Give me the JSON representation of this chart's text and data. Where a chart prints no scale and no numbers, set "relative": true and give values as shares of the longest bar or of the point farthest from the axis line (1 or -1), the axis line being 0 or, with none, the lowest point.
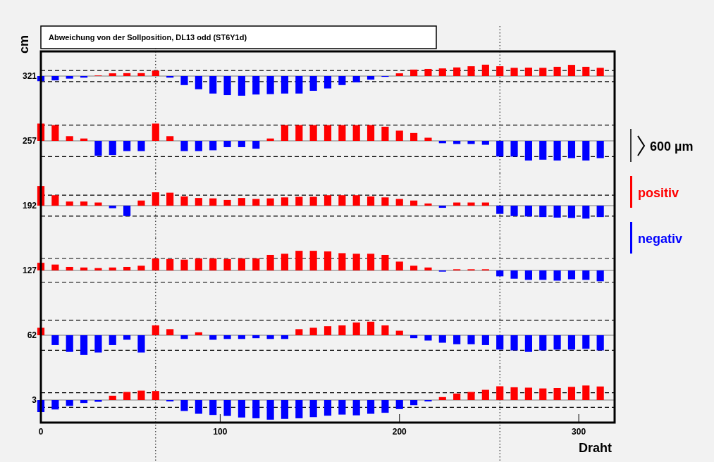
{
  "chart_data": [
    {
      "type": "bar",
      "relative": true,
      "title": "Abweichung von der Sollposition, DL13 odd (ST6Y1d)",
      "ylabel": "cm",
      "legend": "right",
      "legend_title": "600 µm",
      "xlim": [
        0,
        320
      ],
      "annotations": [
        "321"
      ],
      "x": [
        0,
        8,
        16,
        24,
        32,
        40,
        48,
        56,
        64,
        72,
        80,
        88,
        96,
        104,
        112,
        120,
        128,
        136,
        144,
        152,
        160,
        168,
        176,
        184,
        192,
        200,
        208,
        216,
        224,
        232,
        240,
        248,
        256,
        264,
        272,
        280,
        288,
        296,
        304,
        312
      ],
      "ref_lines": [
        {
          "axis": "x",
          "value": 64,
          "color": "#000000",
          "line_style": "dotted"
        },
        {
          "axis": "x",
          "value": 256,
          "color": "#000000",
          "line_style": "dotted"
        },
        {
          "axis": "y",
          "value": 0.28,
          "color": "#000000",
          "line_style": "dashed"
        },
        {
          "axis": "y",
          "value": -0.28,
          "color": "#000000",
          "line_style": "dashed"
        }
      ],
      "series": [
        {
          "name": "positiv",
          "color": "#ff0000",
          "values": [
            null,
            null,
            null,
            null,
            0.03,
            0.14,
            0.15,
            0.15,
            0.28,
            null,
            null,
            null,
            null,
            null,
            null,
            null,
            null,
            null,
            null,
            null,
            null,
            null,
            null,
            null,
            null,
            0.14,
            0.33,
            0.36,
            0.39,
            0.44,
            0.5,
            0.58,
            0.5,
            0.42,
            0.43,
            0.42,
            0.47,
            0.57,
            0.47,
            0.42
          ]
        },
        {
          "name": "negativ",
          "color": "#0000ff",
          "values": [
            -0.26,
            -0.22,
            -0.13,
            -0.08,
            null,
            null,
            null,
            null,
            null,
            -0.08,
            -0.46,
            -0.67,
            -0.89,
            -0.97,
            -1,
            -0.94,
            -0.92,
            -0.89,
            -0.89,
            -0.75,
            -0.63,
            -0.46,
            -0.32,
            -0.18,
            -0.04,
            null,
            null,
            null,
            null,
            null,
            null,
            null,
            null,
            null,
            null,
            null,
            null,
            null,
            null,
            null
          ]
        }
      ]
    },
    {
      "type": "bar",
      "relative": true,
      "xlim": [
        0,
        320
      ],
      "annotations": [
        "257"
      ],
      "x": [
        0,
        8,
        16,
        24,
        32,
        40,
        48,
        56,
        64,
        72,
        80,
        88,
        96,
        104,
        112,
        120,
        128,
        136,
        144,
        152,
        160,
        168,
        176,
        184,
        192,
        200,
        208,
        216,
        224,
        232,
        240,
        248,
        256,
        264,
        272,
        280,
        288,
        296,
        304,
        312
      ],
      "ref_lines": [
        {
          "axis": "x",
          "value": 64,
          "color": "#000000",
          "line_style": "dotted"
        },
        {
          "axis": "x",
          "value": 256,
          "color": "#000000",
          "line_style": "dotted"
        },
        {
          "axis": "y",
          "value": 0.8,
          "color": "#000000",
          "line_style": "dashed"
        },
        {
          "axis": "y",
          "value": -0.8,
          "color": "#000000",
          "line_style": "dashed"
        }
      ],
      "series": [
        {
          "color": "#ff0000",
          "values": [
            0.88,
            0.8,
            0.24,
            0.12,
            null,
            null,
            null,
            null,
            0.88,
            0.24,
            null,
            null,
            null,
            null,
            null,
            null,
            0.12,
            0.8,
            0.8,
            0.8,
            0.8,
            0.8,
            0.8,
            0.8,
            0.72,
            0.52,
            0.4,
            0.16,
            null,
            null,
            null,
            null,
            null,
            null,
            null,
            null,
            null,
            null,
            null,
            null
          ]
        },
        {
          "color": "#0000ff",
          "values": [
            null,
            null,
            null,
            null,
            -0.76,
            -0.72,
            -0.52,
            -0.52,
            null,
            null,
            -0.52,
            -0.52,
            -0.48,
            -0.32,
            -0.32,
            -0.4,
            null,
            null,
            null,
            null,
            null,
            null,
            null,
            null,
            null,
            null,
            null,
            null,
            -0.12,
            -0.16,
            -0.16,
            -0.2,
            -0.8,
            -0.8,
            -1,
            -0.96,
            -1,
            -0.88,
            -1,
            -0.88
          ]
        }
      ]
    },
    {
      "type": "bar",
      "relative": true,
      "xlim": [
        0,
        320
      ],
      "annotations": [
        "192"
      ],
      "x": [
        0,
        8,
        16,
        24,
        32,
        40,
        48,
        56,
        64,
        72,
        80,
        88,
        96,
        104,
        112,
        120,
        128,
        136,
        144,
        152,
        160,
        168,
        176,
        184,
        192,
        200,
        208,
        216,
        224,
        232,
        240,
        248,
        256,
        264,
        272,
        280,
        288,
        296,
        304,
        312
      ],
      "ref_lines": [
        {
          "axis": "x",
          "value": 64,
          "color": "#000000",
          "line_style": "dotted"
        },
        {
          "axis": "x",
          "value": 256,
          "color": "#000000",
          "line_style": "dotted"
        },
        {
          "axis": "y",
          "value": 0.53,
          "color": "#000000",
          "line_style": "dashed"
        },
        {
          "axis": "y",
          "value": -0.53,
          "color": "#000000",
          "line_style": "dashed"
        }
      ],
      "series": [
        {
          "color": "#ff0000",
          "values": [
            1,
            0.53,
            0.21,
            0.21,
            0.16,
            null,
            null,
            0.26,
            0.68,
            0.66,
            0.47,
            0.39,
            0.37,
            0.29,
            0.39,
            0.34,
            0.37,
            0.42,
            0.45,
            0.45,
            0.53,
            0.53,
            0.53,
            0.47,
            0.42,
            0.34,
            0.26,
            0.11,
            null,
            0.16,
            0.16,
            0.16,
            null,
            null,
            null,
            null,
            null,
            null,
            null,
            null
          ]
        },
        {
          "color": "#0000ff",
          "values": [
            null,
            null,
            null,
            null,
            null,
            -0.13,
            -0.53,
            null,
            null,
            null,
            null,
            null,
            null,
            null,
            null,
            null,
            null,
            null,
            null,
            null,
            null,
            null,
            null,
            null,
            null,
            null,
            null,
            null,
            -0.11,
            null,
            null,
            null,
            -0.42,
            -0.53,
            -0.55,
            -0.58,
            -0.61,
            -0.63,
            -0.66,
            -0.58
          ]
        }
      ]
    },
    {
      "type": "bar",
      "relative": true,
      "xlim": [
        0,
        320
      ],
      "annotations": [
        "127"
      ],
      "x": [
        0,
        8,
        16,
        24,
        32,
        40,
        48,
        56,
        64,
        72,
        80,
        88,
        96,
        104,
        112,
        120,
        128,
        136,
        144,
        152,
        160,
        168,
        176,
        184,
        192,
        200,
        208,
        216,
        224,
        232,
        240,
        248,
        256,
        264,
        272,
        280,
        288,
        296,
        304,
        312
      ],
      "ref_lines": [
        {
          "axis": "x",
          "value": 64,
          "color": "#000000",
          "line_style": "dotted"
        },
        {
          "axis": "x",
          "value": 256,
          "color": "#000000",
          "line_style": "dotted"
        },
        {
          "axis": "y",
          "value": 0.61,
          "color": "#000000",
          "line_style": "dashed"
        },
        {
          "axis": "y",
          "value": -0.61,
          "color": "#000000",
          "line_style": "dashed"
        }
      ],
      "series": [
        {
          "color": "#ff0000",
          "values": [
            0.39,
            0.3,
            0.18,
            0.15,
            0.12,
            0.15,
            0.18,
            0.24,
            0.61,
            0.58,
            0.55,
            0.61,
            0.61,
            0.58,
            0.61,
            0.61,
            0.79,
            0.85,
            1,
            1,
            0.97,
            0.88,
            0.85,
            0.85,
            0.79,
            0.45,
            0.24,
            0.15,
            null,
            0.06,
            0.06,
            0.06,
            null,
            null,
            null,
            null,
            null,
            null,
            null,
            null
          ]
        },
        {
          "color": "#0000ff",
          "values": [
            null,
            null,
            null,
            null,
            null,
            null,
            null,
            null,
            null,
            null,
            null,
            null,
            null,
            null,
            null,
            null,
            null,
            null,
            null,
            null,
            null,
            null,
            null,
            null,
            null,
            null,
            null,
            null,
            -0.06,
            null,
            null,
            null,
            -0.3,
            -0.42,
            -0.48,
            -0.48,
            -0.52,
            -0.45,
            -0.48,
            -0.55
          ]
        }
      ]
    },
    {
      "type": "bar",
      "relative": true,
      "xlim": [
        0,
        320
      ],
      "annotations": [
        "62"
      ],
      "x": [
        0,
        8,
        16,
        24,
        32,
        40,
        48,
        56,
        64,
        72,
        80,
        88,
        96,
        104,
        112,
        120,
        128,
        136,
        144,
        152,
        160,
        168,
        176,
        184,
        192,
        200,
        208,
        216,
        224,
        232,
        240,
        248,
        256,
        264,
        272,
        280,
        288,
        296,
        304,
        312
      ],
      "ref_lines": [
        {
          "axis": "x",
          "value": 64,
          "color": "#000000",
          "line_style": "dotted"
        },
        {
          "axis": "x",
          "value": 256,
          "color": "#000000",
          "line_style": "dotted"
        },
        {
          "axis": "y",
          "value": 0.77,
          "color": "#000000",
          "line_style": "dashed"
        },
        {
          "axis": "y",
          "value": -0.77,
          "color": "#000000",
          "line_style": "dashed"
        }
      ],
      "series": [
        {
          "color": "#ff0000",
          "values": [
            0.38,
            null,
            null,
            null,
            null,
            null,
            null,
            null,
            0.5,
            0.31,
            null,
            0.15,
            null,
            null,
            null,
            null,
            null,
            null,
            0.31,
            0.38,
            0.46,
            0.5,
            0.65,
            0.69,
            0.5,
            0.23,
            null,
            null,
            null,
            null,
            null,
            null,
            null,
            null,
            null,
            null,
            null,
            null,
            null,
            null
          ]
        },
        {
          "color": "#0000ff",
          "values": [
            null,
            -0.5,
            -0.85,
            -1,
            -0.88,
            -0.5,
            -0.23,
            -0.88,
            null,
            null,
            -0.19,
            null,
            -0.23,
            -0.19,
            -0.19,
            -0.15,
            -0.19,
            -0.19,
            null,
            null,
            null,
            null,
            null,
            null,
            null,
            null,
            -0.15,
            -0.27,
            -0.38,
            -0.46,
            -0.46,
            -0.5,
            -0.73,
            -0.77,
            -0.85,
            -0.77,
            -0.73,
            -0.73,
            -0.69,
            -0.77
          ]
        }
      ]
    },
    {
      "type": "bar",
      "relative": true,
      "xlabel": "Draht",
      "xlim": [
        0,
        320
      ],
      "xticks": [
        0,
        100,
        200,
        300
      ],
      "annotations": [
        "3"
      ],
      "x": [
        0,
        8,
        16,
        24,
        32,
        40,
        48,
        56,
        64,
        72,
        80,
        88,
        96,
        104,
        112,
        120,
        128,
        136,
        144,
        152,
        160,
        168,
        176,
        184,
        192,
        200,
        208,
        216,
        224,
        232,
        240,
        248,
        256,
        264,
        272,
        280,
        288,
        296,
        304,
        312
      ],
      "ref_lines": [
        {
          "axis": "x",
          "value": 64,
          "color": "#000000",
          "line_style": "dotted"
        },
        {
          "axis": "x",
          "value": 256,
          "color": "#000000",
          "line_style": "dotted"
        },
        {
          "axis": "y",
          "value": 0.37,
          "color": "#000000",
          "line_style": "dashed"
        },
        {
          "axis": "y",
          "value": -0.37,
          "color": "#000000",
          "line_style": "dashed"
        }
      ],
      "series": [
        {
          "color": "#ff0000",
          "values": [
            null,
            null,
            null,
            null,
            null,
            0.22,
            0.41,
            0.48,
            0.46,
            null,
            null,
            null,
            null,
            null,
            null,
            null,
            null,
            null,
            null,
            null,
            null,
            null,
            null,
            null,
            null,
            null,
            null,
            null,
            0.15,
            0.33,
            0.41,
            0.52,
            0.7,
            0.65,
            0.63,
            0.59,
            0.61,
            0.67,
            0.74,
            0.69
          ]
        },
        {
          "color": "#0000ff",
          "values": [
            -0.61,
            -0.48,
            -0.3,
            -0.15,
            -0.09,
            null,
            null,
            null,
            null,
            -0.07,
            -0.56,
            -0.7,
            -0.76,
            -0.81,
            -0.89,
            -0.93,
            -1,
            -0.96,
            -0.93,
            -0.87,
            -0.8,
            -0.74,
            -0.78,
            -0.7,
            -0.65,
            -0.46,
            -0.26,
            -0.07,
            null,
            null,
            null,
            null,
            null,
            null,
            null,
            null,
            null,
            null,
            null,
            null
          ]
        }
      ]
    }
  ]
}
